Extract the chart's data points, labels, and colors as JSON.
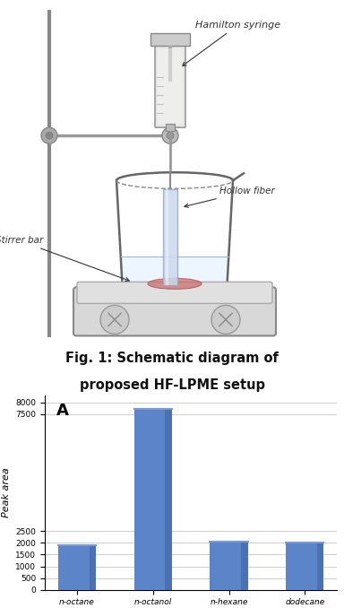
{
  "fig_caption_line1": "Fig. 1: Schematic diagram of",
  "fig_caption_line2": "proposed HF-LPME setup",
  "caption_fontsize": 10.5,
  "caption_fontweight": "bold",
  "bar_categories": [
    "n-octane",
    "n-octanol",
    "n-hexane",
    "dodecane"
  ],
  "bar_values": [
    1900,
    7700,
    2050,
    2000
  ],
  "bar_color": "#5B85C8",
  "bar_edge_color": "#3A60A0",
  "ylabel": "Peak area",
  "ylabel_fontsize": 8,
  "yticks": [
    0,
    500,
    1000,
    1500,
    2000,
    2500,
    7500,
    8000
  ],
  "ylim": [
    0,
    8300
  ],
  "chart_label": "A",
  "chart_label_fontsize": 13,
  "tick_fontsize": 6.5,
  "xlabel_fontsize": 6.5,
  "background_color": "#ffffff",
  "grid_color": "#bbbbbb",
  "schematic_labels": {
    "hamilton": "Hamilton syringe",
    "hollow_fiber": "Hollow fiber",
    "stirrer_bar": "Stirrer bar"
  },
  "label_fontsize": 8,
  "label_color": "#333333"
}
